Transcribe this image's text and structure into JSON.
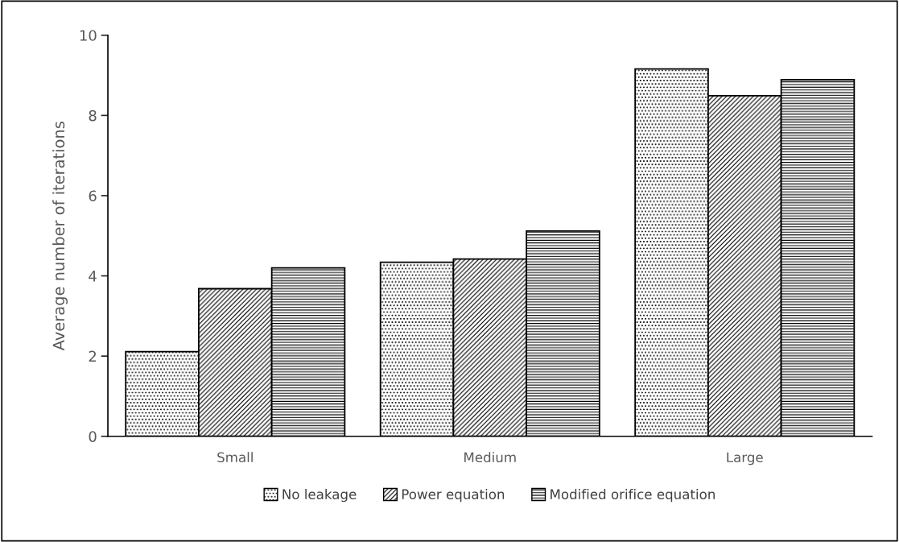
{
  "chart_data": {
    "type": "bar",
    "ylabel": "Average number of iterations",
    "categories": [
      "Small",
      "Medium",
      "Large"
    ],
    "series": [
      {
        "name": "No leakage",
        "color": "#000000",
        "values": [
          2.11,
          4.34,
          9.16
        ]
      },
      {
        "name": "Power equation",
        "color": "#000000",
        "values": [
          3.68,
          4.42,
          8.49
        ]
      },
      {
        "name": "Modified orifice equation",
        "color": "#000000",
        "values": [
          4.2,
          5.12,
          8.89
        ]
      }
    ],
    "ylim": [
      0,
      10
    ],
    "yticks": [
      0,
      2,
      4,
      6,
      8,
      10
    ],
    "grid": false,
    "legend": "bottom"
  }
}
